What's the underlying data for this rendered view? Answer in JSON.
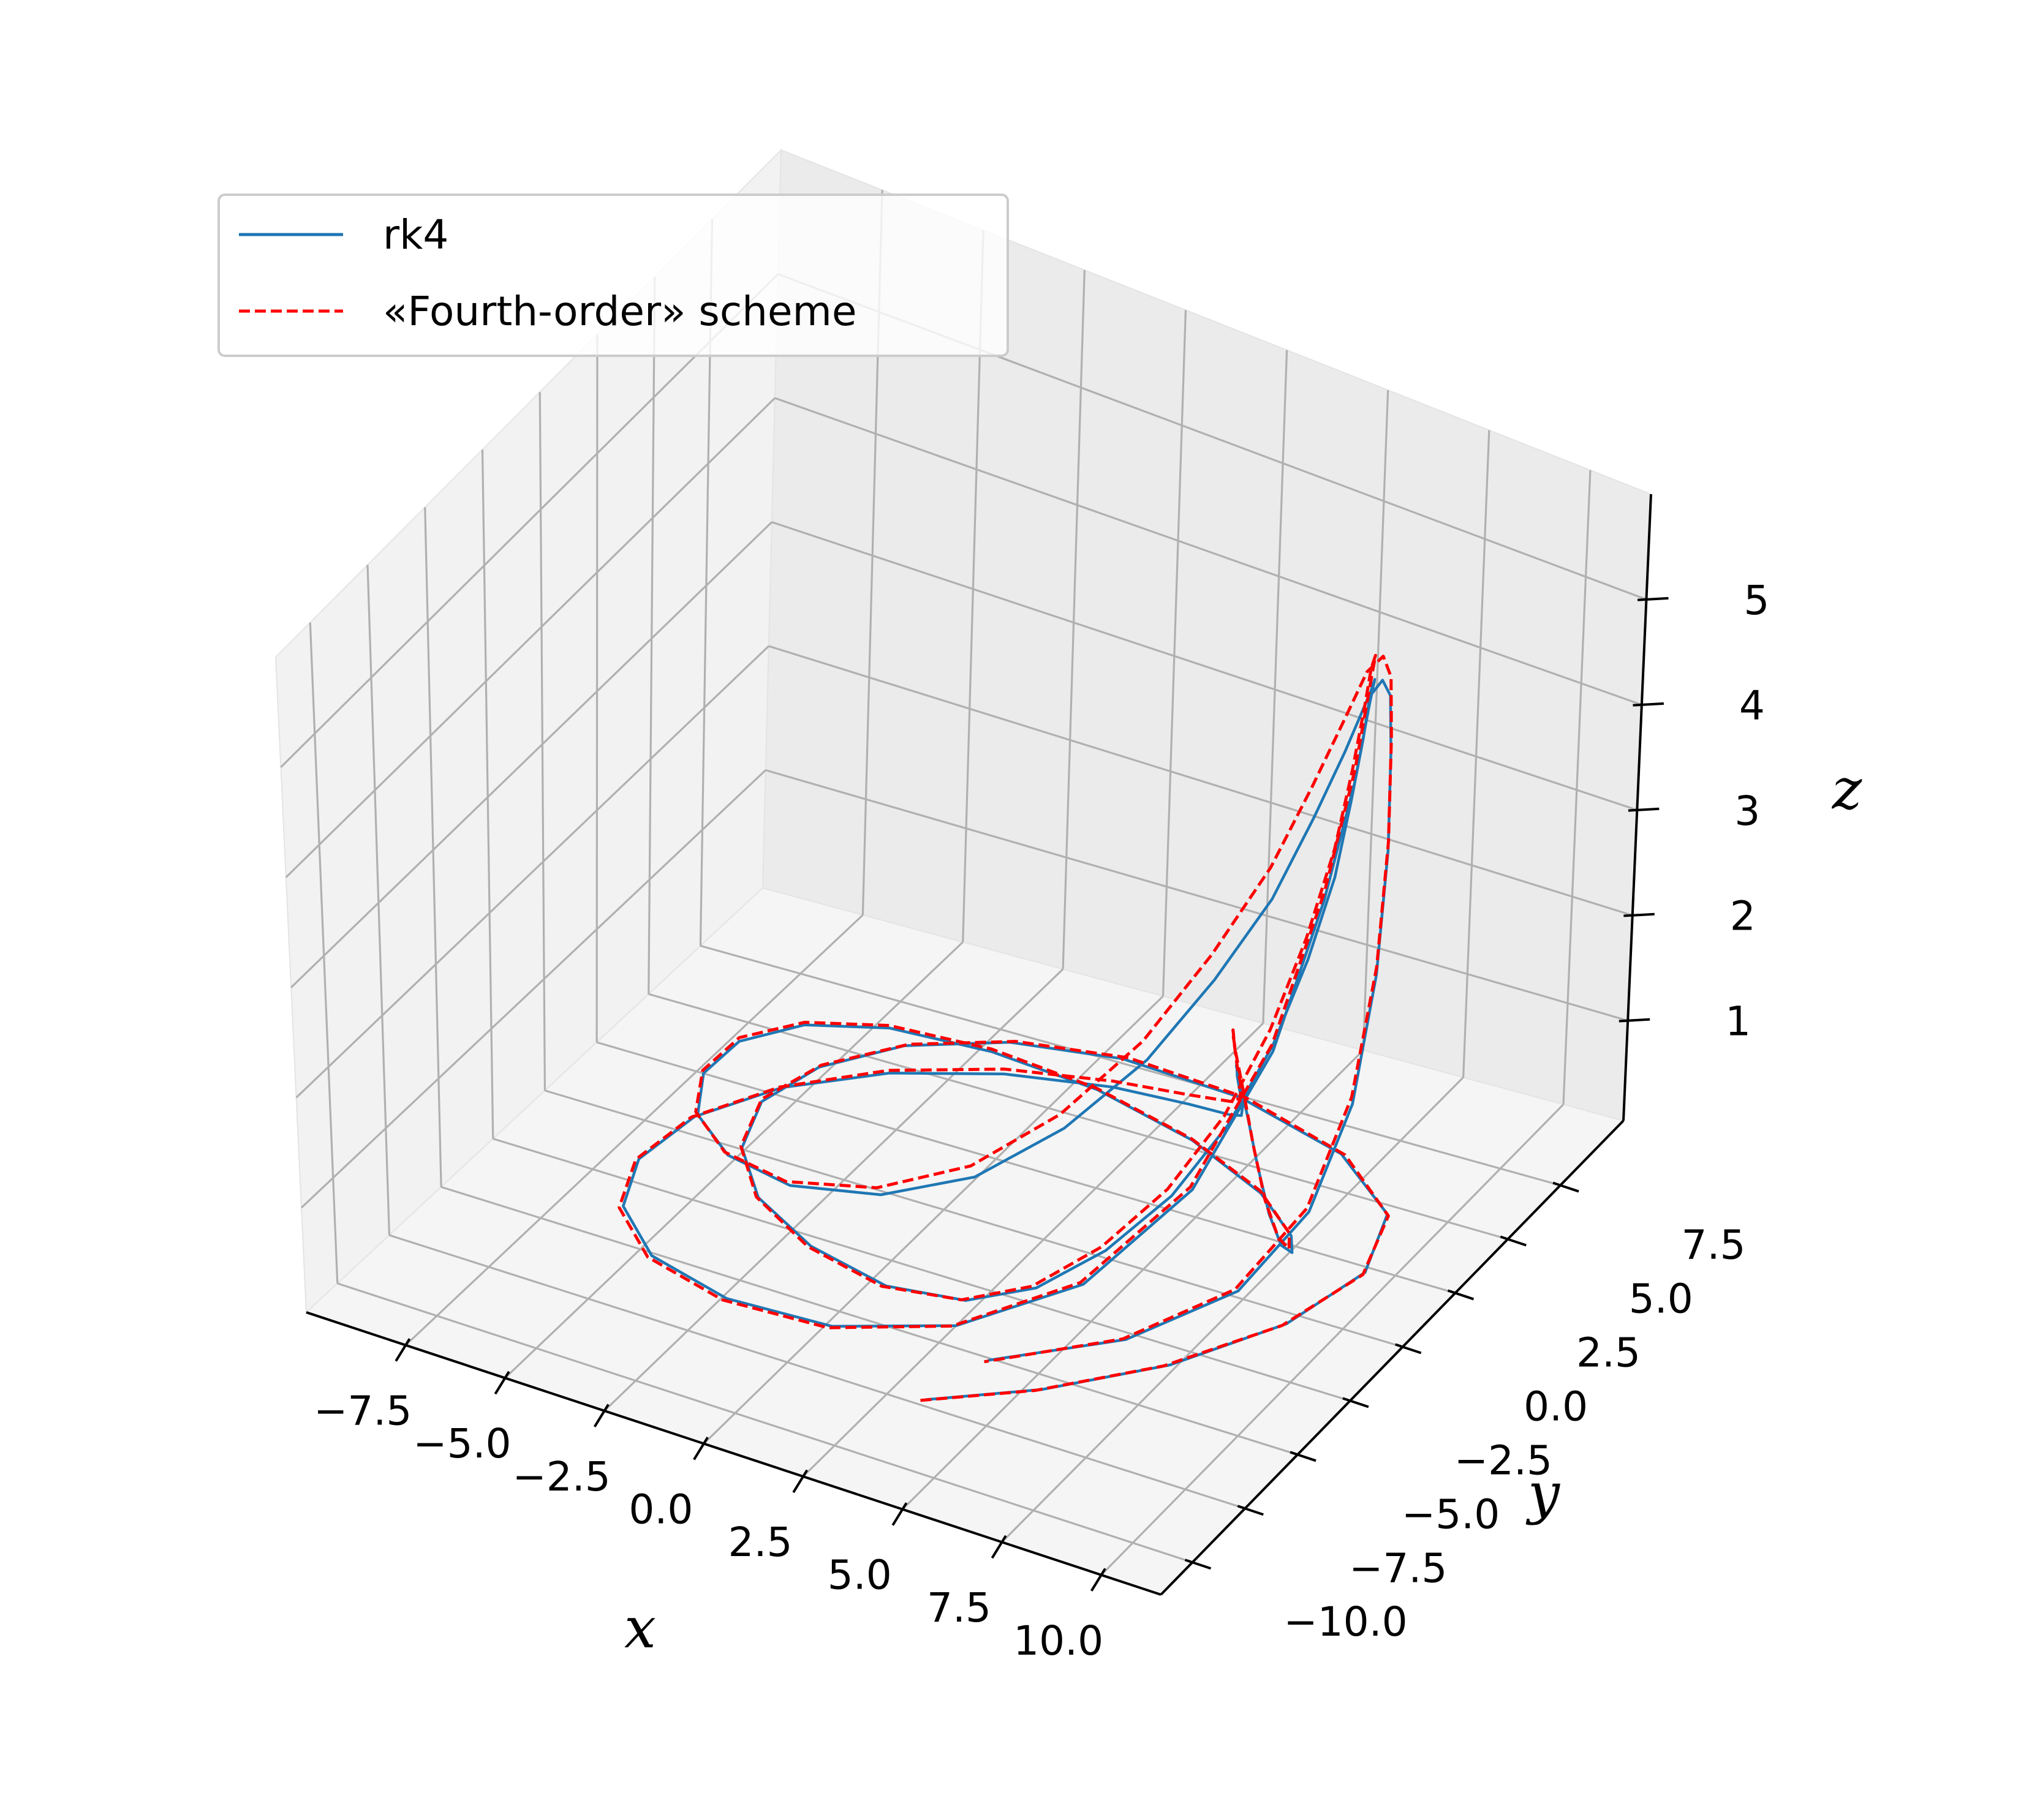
{
  "chart_data": {
    "type": "line",
    "projection": "3d",
    "title": "",
    "xlabel": "x",
    "ylabel": "y",
    "zlabel": "z",
    "x_ticks": [
      "−7.5",
      "−5.0",
      "−2.5",
      "0.0",
      "2.5",
      "5.0",
      "7.5",
      "10.0"
    ],
    "y_ticks": [
      "−10.0",
      "−7.5",
      "−5.0",
      "−2.5",
      "0.0",
      "2.5",
      "5.0",
      "7.5"
    ],
    "z_ticks": [
      "1",
      "2",
      "3",
      "4",
      "5"
    ],
    "xlim": [
      -10,
      11.5
    ],
    "ylim": [
      -11.5,
      10.5
    ],
    "zlim": [
      0.05,
      6
    ],
    "grid": true,
    "legend_position": "upper-left",
    "series": [
      {
        "name": "rk4",
        "style": "solid",
        "color": "#1f77b4",
        "x": [
          3.5,
          5.5,
          7.5,
          9.0,
          9.6,
          9.0,
          7.0,
          4.0,
          1.0,
          -1.5,
          -3.5,
          -4.8,
          -5.3,
          -4.8,
          -3.5,
          -1.5,
          0.8,
          2.8,
          4.2,
          5.3,
          6.2,
          6.9,
          7.4,
          7.8,
          8.1,
          8.3,
          8.5,
          8.7,
          8.9,
          9.05,
          9.1,
          9.0,
          8.6,
          7.6,
          5.8,
          3.3,
          0.5,
          -2.2,
          -4.5,
          -6.0,
          -6.6,
          -6.3,
          -5.1,
          -3.2,
          -0.8,
          1.8,
          4.0,
          5.6,
          6.6,
          7.3,
          7.8,
          8.2,
          8.5,
          8.7,
          8.9,
          9.1,
          9.25,
          9.3,
          9.2,
          8.8,
          7.9,
          6.2,
          3.7,
          0.8,
          -2.0,
          -4.4,
          -6.0,
          -6.8,
          -6.7,
          -5.8,
          -4.1,
          -1.8,
          0.9,
          3.3,
          5.2,
          6.6,
          7.5,
          8.2,
          8.6,
          8.9,
          9.1,
          9.3,
          9.45,
          9.55,
          9.65,
          9.7,
          9.6,
          9.2,
          8.3,
          6.5,
          4.0
        ],
        "y": [
          -7.5,
          -5.8,
          -3.5,
          -0.8,
          1.8,
          4.0,
          5.6,
          6.5,
          6.6,
          6.0,
          4.8,
          3.2,
          1.4,
          -0.5,
          -2.2,
          -3.5,
          -4.3,
          -4.3,
          -3.6,
          -2.4,
          -1.0,
          0.3,
          1.4,
          2.2,
          2.8,
          3.1,
          3.2,
          3.1,
          2.9,
          2.4,
          1.7,
          0.6,
          -0.9,
          -2.7,
          -4.4,
          -5.7,
          -6.3,
          -6.2,
          -5.4,
          -3.9,
          -2.0,
          0.1,
          2.0,
          3.5,
          4.4,
          4.6,
          4.0,
          2.9,
          1.5,
          0.2,
          -0.9,
          -1.8,
          -2.4,
          -2.8,
          -3.0,
          -3.0,
          -2.8,
          -2.3,
          -1.5,
          -0.2,
          1.5,
          3.3,
          4.8,
          5.8,
          6.1,
          5.8,
          4.8,
          3.2,
          1.3,
          -0.7,
          -2.5,
          -3.9,
          -4.7,
          -4.8,
          -4.2,
          -3.0,
          -1.6,
          -0.3,
          0.8,
          1.6,
          2.2,
          2.5,
          2.6,
          2.5,
          2.3,
          1.8,
          1.0,
          -0.2,
          -1.8,
          -3.7,
          -5.5
        ],
        "z": [
          0.12,
          0.12,
          0.13,
          0.15,
          0.18,
          0.22,
          0.25,
          0.28,
          0.3,
          0.3,
          0.28,
          0.24,
          0.2,
          0.18,
          0.18,
          0.2,
          0.25,
          0.35,
          0.5,
          0.75,
          1.1,
          1.6,
          2.2,
          2.9,
          3.6,
          4.3,
          4.9,
          5.4,
          5.6,
          5.5,
          4.9,
          4.0,
          2.8,
          1.7,
          0.9,
          0.45,
          0.22,
          0.14,
          0.12,
          0.13,
          0.15,
          0.19,
          0.24,
          0.3,
          0.38,
          0.5,
          0.7,
          1.0,
          1.4,
          1.85,
          2.3,
          2.7,
          3.0,
          3.1,
          3.0,
          2.7,
          2.2,
          1.6,
          1.1,
          0.7,
          0.4,
          0.25,
          0.18,
          0.15,
          0.15,
          0.17,
          0.21,
          0.26,
          0.32,
          0.4,
          0.55,
          0.8,
          1.2,
          1.7,
          2.3,
          2.9,
          3.5,
          4.1,
          4.7,
          5.2,
          5.6,
          5.75,
          5.6,
          5.1,
          4.2,
          3.1,
          2.0,
          1.15,
          0.6,
          0.3,
          0.16
        ]
      },
      {
        "name": "«Fourth-order» scheme",
        "style": "dashed",
        "color": "#ff0000",
        "x": [
          3.4,
          5.4,
          7.4,
          8.95,
          9.6,
          9.05,
          7.1,
          4.1,
          1.1,
          -1.4,
          -3.45,
          -4.8,
          -5.35,
          -4.85,
          -3.55,
          -1.55,
          0.75,
          2.75,
          4.15,
          5.25,
          6.15,
          6.85,
          7.35,
          7.75,
          8.05,
          8.25,
          8.45,
          8.65,
          8.85,
          9.0,
          9.05,
          8.95,
          8.55,
          7.55,
          5.75,
          3.25,
          0.45,
          -2.25,
          -4.55,
          -6.05,
          -6.65,
          -6.35,
          -5.15,
          -3.25,
          -0.85,
          1.75,
          3.95,
          5.55,
          6.55,
          7.25,
          7.75,
          8.15,
          8.45,
          8.65,
          8.85,
          9.05,
          9.2,
          9.25,
          9.15,
          8.75,
          7.85,
          6.15,
          3.65,
          0.75,
          -2.05,
          -4.45,
          -6.05,
          -6.85,
          -6.75,
          -5.85,
          -4.15,
          -1.85,
          0.85,
          3.25,
          5.15,
          6.55,
          7.45,
          8.15,
          8.55,
          8.85,
          9.05,
          9.25,
          9.4,
          9.5,
          9.6,
          9.65,
          9.55,
          9.15,
          8.25,
          6.45,
          3.95
        ],
        "y": [
          -7.6,
          -5.9,
          -3.6,
          -0.9,
          1.7,
          3.95,
          5.6,
          6.55,
          6.7,
          6.1,
          4.9,
          3.3,
          1.5,
          -0.45,
          -2.2,
          -3.55,
          -4.4,
          -4.4,
          -3.7,
          -2.5,
          -1.1,
          0.2,
          1.35,
          2.2,
          2.85,
          3.2,
          3.3,
          3.2,
          3.0,
          2.5,
          1.8,
          0.7,
          -0.85,
          -2.7,
          -4.45,
          -5.8,
          -6.4,
          -6.3,
          -5.5,
          -4.0,
          -2.05,
          0.05,
          2.0,
          3.55,
          4.5,
          4.7,
          4.1,
          3.0,
          1.55,
          0.2,
          -0.95,
          -1.85,
          -2.5,
          -2.9,
          -3.1,
          -3.1,
          -2.9,
          -2.4,
          -1.55,
          -0.25,
          1.5,
          3.35,
          4.85,
          5.85,
          6.2,
          5.9,
          4.9,
          3.3,
          1.35,
          -0.7,
          -2.55,
          -4.0,
          -4.8,
          -4.9,
          -4.3,
          -3.1,
          -1.65,
          -0.3,
          0.8,
          1.65,
          2.25,
          2.6,
          2.7,
          2.6,
          2.4,
          1.9,
          1.05,
          -0.2,
          -1.85,
          -3.75,
          -5.6
        ],
        "z": [
          0.12,
          0.12,
          0.13,
          0.15,
          0.18,
          0.22,
          0.25,
          0.28,
          0.3,
          0.3,
          0.28,
          0.24,
          0.2,
          0.18,
          0.18,
          0.2,
          0.26,
          0.37,
          0.53,
          0.8,
          1.18,
          1.7,
          2.35,
          3.1,
          3.85,
          4.55,
          5.15,
          5.6,
          5.8,
          5.65,
          5.0,
          4.05,
          2.85,
          1.72,
          0.92,
          0.46,
          0.22,
          0.14,
          0.12,
          0.13,
          0.15,
          0.19,
          0.24,
          0.31,
          0.4,
          0.53,
          0.76,
          1.1,
          1.55,
          2.05,
          2.55,
          3.0,
          3.35,
          3.45,
          3.3,
          2.95,
          2.4,
          1.75,
          1.18,
          0.74,
          0.42,
          0.26,
          0.18,
          0.15,
          0.15,
          0.17,
          0.21,
          0.27,
          0.33,
          0.42,
          0.58,
          0.85,
          1.28,
          1.82,
          2.45,
          3.1,
          3.75,
          4.4,
          5.0,
          5.5,
          5.85,
          5.95,
          5.75,
          5.2,
          4.25,
          3.15,
          2.05,
          1.18,
          0.62,
          0.31,
          0.16
        ]
      }
    ]
  }
}
